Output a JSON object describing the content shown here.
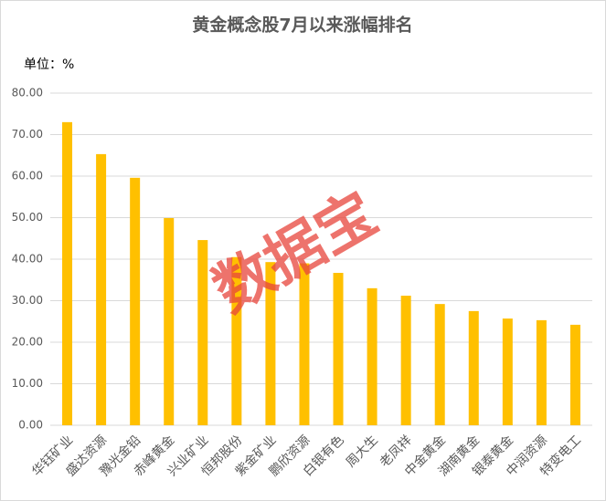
{
  "chart_data": {
    "type": "bar",
    "title": "黄金概念股7月以来涨幅排名",
    "unit_label": "单位：%",
    "watermark": "数据宝",
    "categories": [
      "华钰矿业",
      "盛达资源",
      "豫光金铅",
      "赤峰黄金",
      "兴业矿业",
      "恒邦股份",
      "紫金矿业",
      "鹏欣资源",
      "白银有色",
      "周大生",
      "老凤祥",
      "中金黄金",
      "湖南黄金",
      "银泰黄金",
      "中润资源",
      "特变电工"
    ],
    "values": [
      73.0,
      65.3,
      59.6,
      49.9,
      44.6,
      40.5,
      39.3,
      39.0,
      36.7,
      33.0,
      31.2,
      29.2,
      27.5,
      25.7,
      25.3,
      24.2
    ],
    "color": "#ffc000",
    "ylim": [
      0,
      80
    ],
    "yticks": [
      {
        "value": 0,
        "label": "0.00"
      },
      {
        "value": 10,
        "label": "10.00"
      },
      {
        "value": 20,
        "label": "20.00"
      },
      {
        "value": 30,
        "label": "30.00"
      },
      {
        "value": 40,
        "label": "40.00"
      },
      {
        "value": 50,
        "label": "50.00"
      },
      {
        "value": 60,
        "label": "60.00"
      },
      {
        "value": 70,
        "label": "70.00"
      },
      {
        "value": 80,
        "label": "80.00"
      }
    ],
    "grid": true
  }
}
